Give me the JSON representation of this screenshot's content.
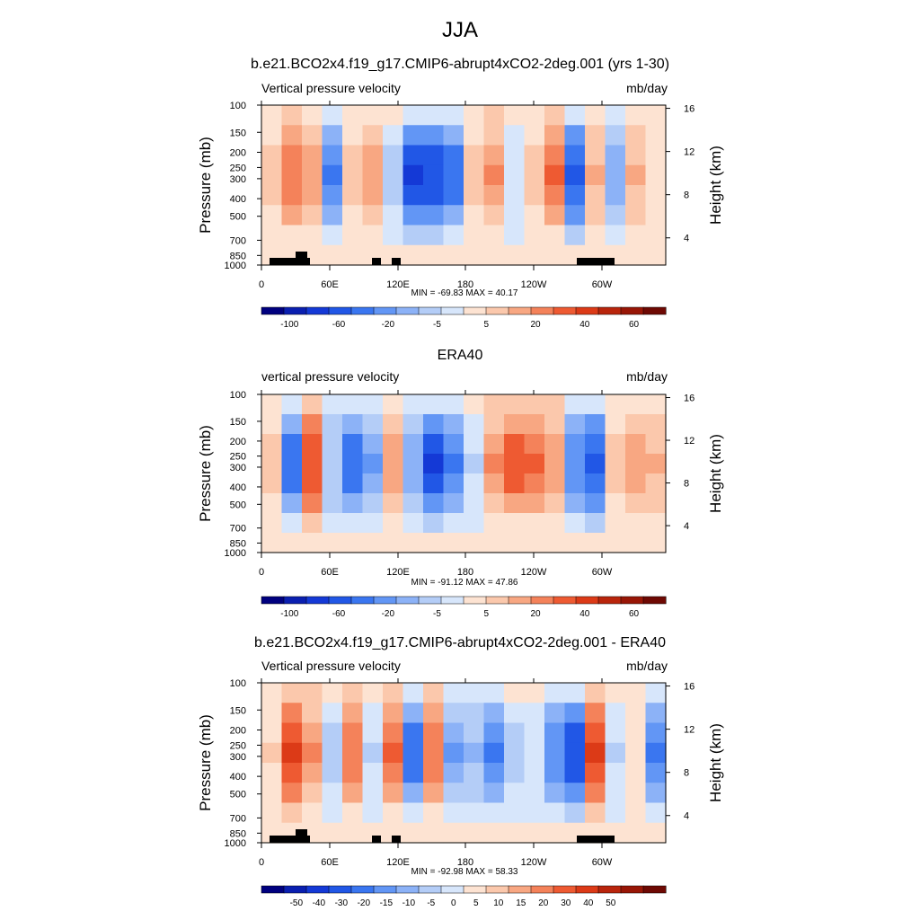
{
  "figure": {
    "title": "JJA"
  },
  "chart_data": [
    {
      "type": "heatmap",
      "title": "b.e21.BCO2x4.f19_g17.CMIP6-abrupt4xCO2-2deg.001 (yrs 1-30)",
      "left_string": "Vertical pressure velocity",
      "units": "mb/day",
      "ylabel": "Pressure (mb)",
      "ylabel_right": "Height (km)",
      "x_ticks": [
        "0",
        "60E",
        "120E",
        "180",
        "120W",
        "60W"
      ],
      "y_ticks": [
        "100",
        "150",
        "200",
        "250",
        "300",
        "400",
        "500",
        "700",
        "850",
        "1000"
      ],
      "y_ticks_right": [
        "16",
        "12",
        "8",
        "4"
      ],
      "min_max": "MIN = -69.83  MAX =  40.17",
      "levels": [
        -100,
        -80,
        -60,
        -40,
        -20,
        -10,
        -5,
        -2,
        0,
        2,
        5,
        10,
        20,
        30,
        40,
        50,
        60,
        80
      ],
      "colorbar_labels": [
        "-100",
        "-60",
        "-20",
        "-5",
        "5",
        "20",
        "40",
        "60"
      ],
      "colors": [
        "#00007f",
        "#0a1fb0",
        "#1439d6",
        "#2157e6",
        "#3a76f0",
        "#6296f5",
        "#8cb2f7",
        "#b4cdf7",
        "#d7e6fb",
        "#fde3d2",
        "#fbc8ac",
        "#f8a782",
        "#f4825a",
        "#ee5a32",
        "#dc3a17",
        "#b9250c",
        "#981606",
        "#6e0903"
      ],
      "zone_intensity": [
        0.5,
        1.3,
        0.9,
        -1.6,
        0.5,
        0.9,
        -0.6,
        -2.4,
        -2.3,
        -1.8,
        0.5,
        1.2,
        -0.3,
        0.5,
        1.6,
        -2.0,
        0.8,
        -0.9,
        0.8,
        0.2
      ]
    },
    {
      "type": "heatmap",
      "title": "ERA40",
      "left_string": "vertical pressure velocity",
      "units": "mb/day",
      "ylabel": "Pressure (mb)",
      "ylabel_right": "Height (km)",
      "x_ticks": [
        "0",
        "60E",
        "120E",
        "180",
        "120W",
        "60W"
      ],
      "y_ticks": [
        "100",
        "150",
        "200",
        "250",
        "300",
        "400",
        "500",
        "700",
        "850",
        "1000"
      ],
      "y_ticks_right": [
        "16",
        "12",
        "8",
        "4"
      ],
      "min_max": "MIN = -91.12  MAX =  47.86",
      "levels": [
        -100,
        -80,
        -60,
        -40,
        -20,
        -10,
        -5,
        -2,
        0,
        2,
        5,
        10,
        20,
        30,
        40,
        50,
        60,
        80
      ],
      "colorbar_labels": [
        "-100",
        "-60",
        "-20",
        "-5",
        "5",
        "20",
        "40",
        "60"
      ],
      "colors": [
        "#00007f",
        "#0a1fb0",
        "#1439d6",
        "#2157e6",
        "#3a76f0",
        "#6296f5",
        "#8cb2f7",
        "#b4cdf7",
        "#d7e6fb",
        "#fde3d2",
        "#fbc8ac",
        "#f8a782",
        "#f4825a",
        "#ee5a32",
        "#dc3a17",
        "#b9250c",
        "#981606",
        "#6e0903"
      ],
      "zone_intensity": [
        0.6,
        -1.8,
        1.9,
        -0.7,
        -1.8,
        -1.2,
        1.0,
        -1.0,
        -2.4,
        -1.6,
        -0.4,
        1.2,
        1.8,
        1.6,
        1.1,
        -1.3,
        -2.0,
        0.6,
        1.0,
        0.8
      ]
    },
    {
      "type": "heatmap",
      "title": "b.e21.BCO2x4.f19_g17.CMIP6-abrupt4xCO2-2deg.001 - ERA40",
      "left_string": "Vertical pressure velocity",
      "units": "mb/day",
      "ylabel": "Pressure (mb)",
      "ylabel_right": "Height (km)",
      "x_ticks": [
        "0",
        "60E",
        "120E",
        "180",
        "120W",
        "60W"
      ],
      "y_ticks": [
        "100",
        "150",
        "200",
        "250",
        "300",
        "400",
        "500",
        "700",
        "850",
        "1000"
      ],
      "y_ticks_right": [
        "16",
        "12",
        "8",
        "4"
      ],
      "min_max": "MIN = -92.98  MAX =  58.33",
      "levels": [
        -60,
        -50,
        -40,
        -30,
        -20,
        -15,
        -10,
        -5,
        -2,
        0,
        2,
        5,
        10,
        15,
        20,
        30,
        40,
        50
      ],
      "colorbar_labels": [
        "-50",
        "-40",
        "-30",
        "-20",
        "-15",
        "-10",
        "-5",
        "0",
        "5",
        "10",
        "15",
        "20",
        "30",
        "40",
        "50"
      ],
      "colors": [
        "#00007f",
        "#0a1fb0",
        "#1439d6",
        "#2157e6",
        "#3a76f0",
        "#6296f5",
        "#8cb2f7",
        "#b4cdf7",
        "#d7e6fb",
        "#fde3d2",
        "#fbc8ac",
        "#f8a782",
        "#f4825a",
        "#ee5a32",
        "#dc3a17",
        "#b9250c",
        "#981606",
        "#6e0903"
      ],
      "zone_intensity": [
        0.4,
        2.0,
        1.2,
        -0.6,
        1.4,
        -0.4,
        1.6,
        -1.8,
        1.3,
        -1.2,
        -0.8,
        -1.6,
        -0.5,
        -0.2,
        -1.4,
        -2.2,
        2.0,
        -0.4,
        0.3,
        -1.6
      ]
    }
  ]
}
